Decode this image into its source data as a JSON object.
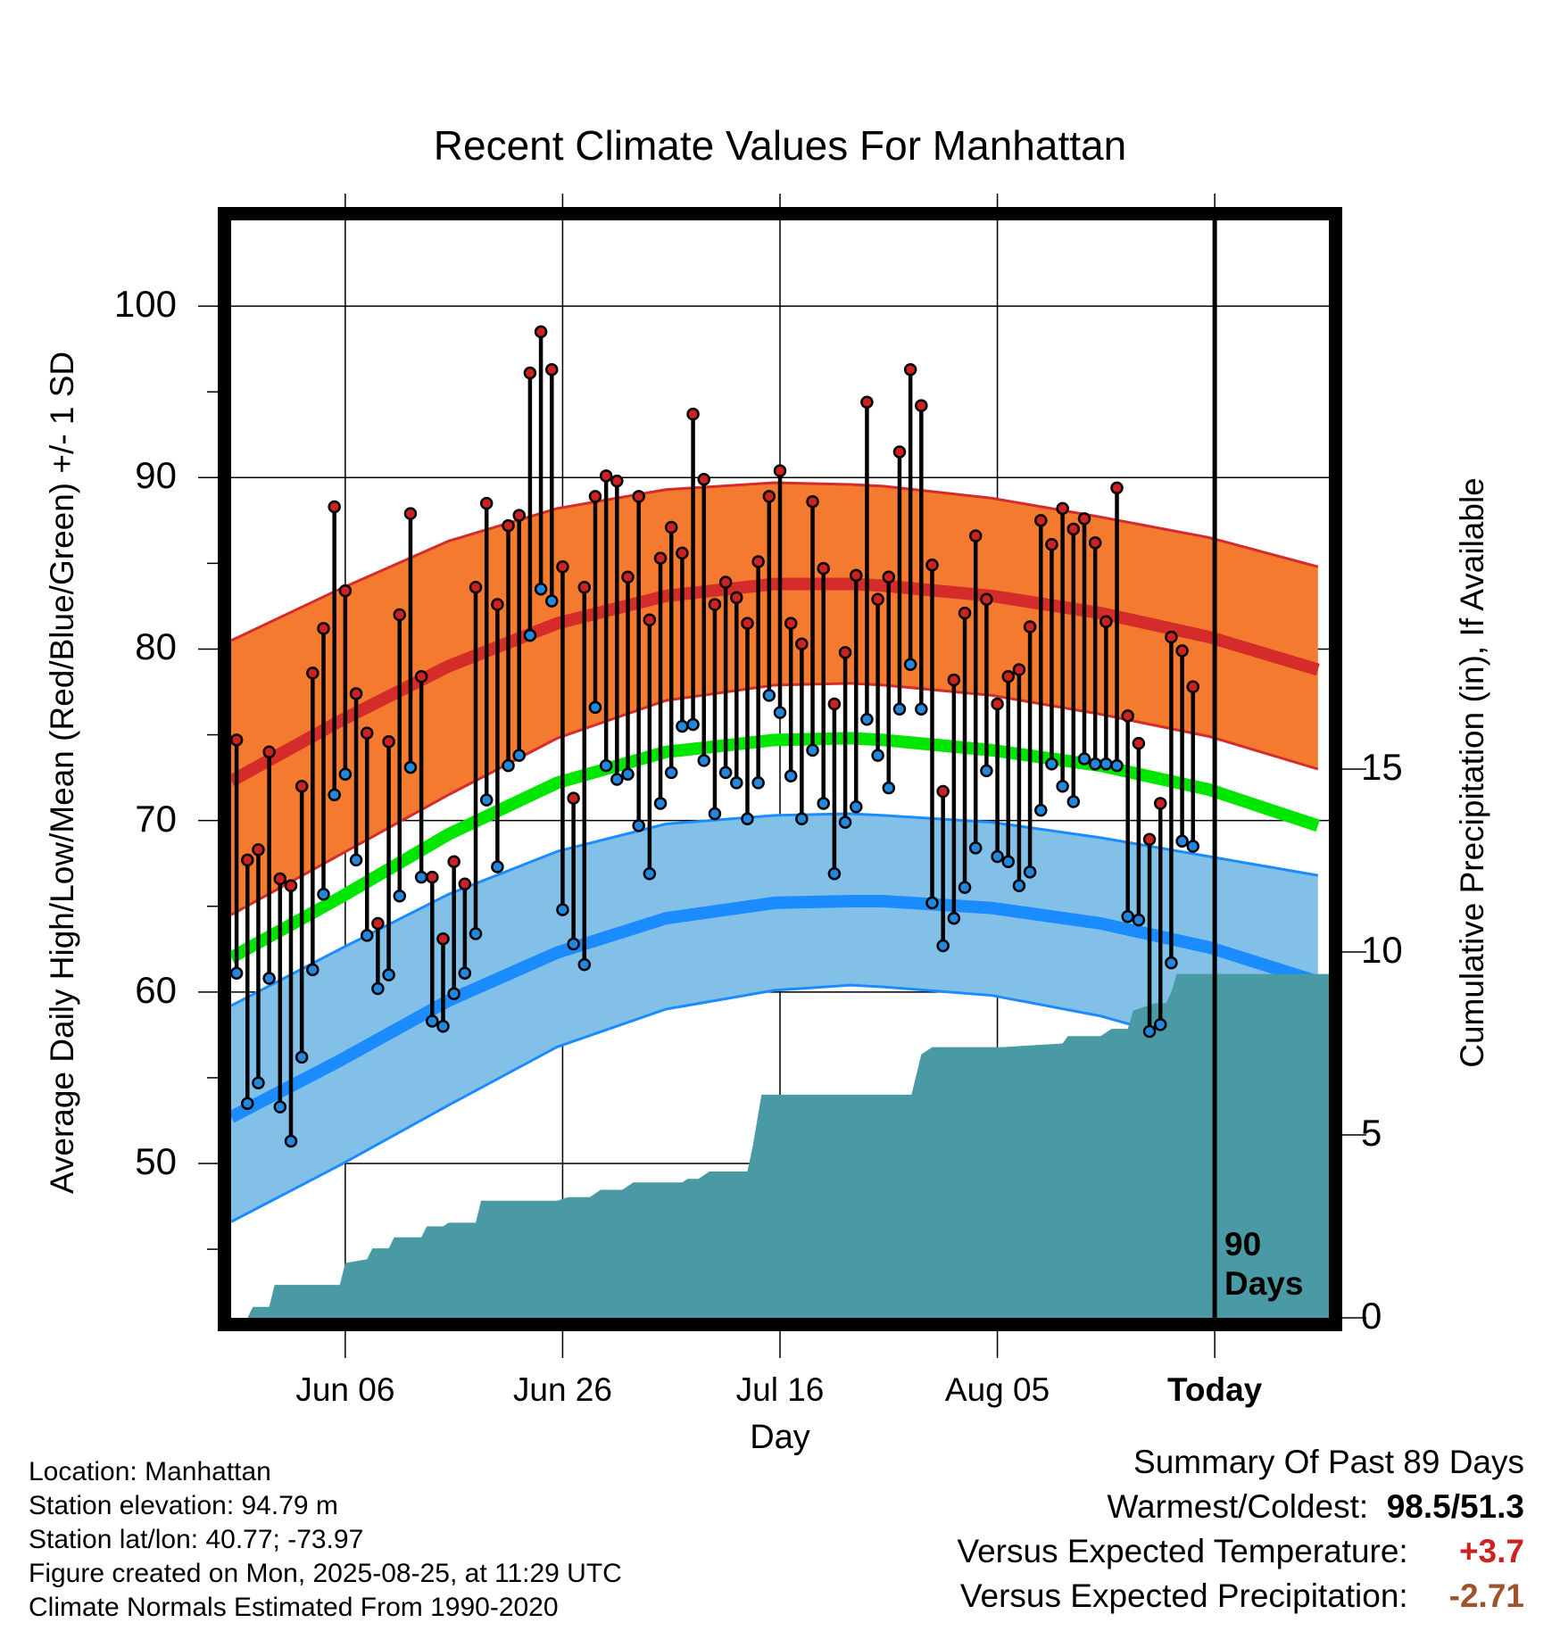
{
  "title": "Recent Climate Values For Manhattan",
  "xlabel": "Day",
  "ylabel_left": "Average Daily High/Low/Mean (Red/Blue/Green) +/- 1 SD",
  "ylabel_right": "Cumulative Precipitation (in), If Available",
  "today_label_line1": "90",
  "today_label_line2": "Days",
  "info": {
    "location": "Location: Manhattan",
    "elevation": "Station elevation: 94.79 m",
    "latlon": "Station lat/lon: 40.77; -73.97",
    "created": "Figure created on Mon, 2025-08-25, at 11:29 UTC",
    "normals": "Climate Normals Estimated From 1990-2020"
  },
  "summary": {
    "heading": "Summary Of Past 89 Days",
    "warm_cold_label": "Warmest/Coldest:",
    "warm_cold_value": "98.5/51.3",
    "temp_label": "Versus Expected Temperature:",
    "temp_value": "+3.7",
    "precip_label": "Versus Expected Precipitation:",
    "precip_value": "-2.71"
  },
  "colors": {
    "high_band": "#f47a30",
    "high_line": "#d42b2b",
    "mean_line": "#00e600",
    "low_band": "#82c0e8",
    "low_line": "#1a8cff",
    "precip_fill": "#4a9aa5",
    "high_dot": "#cc2222",
    "low_dot": "#2288dd",
    "warm_value": "#cc2222",
    "precip_value": "#a0522d"
  },
  "chart_data": {
    "type": "line",
    "title": "Recent Climate Values For Manhattan",
    "xlabel": "Day",
    "ylabel": "Average Daily High/Low/Mean (Red/Blue/Green) +/- 1 SD",
    "y2label": "Cumulative Precipitation (in), If Available",
    "x_range_days": [
      0,
      101
    ],
    "x_ticks": [
      {
        "label": "Jun 06",
        "day": 10.5
      },
      {
        "label": "Jun 26",
        "day": 30.5
      },
      {
        "label": "Jul 16",
        "day": 50.5
      },
      {
        "label": "Aug 05",
        "day": 70.5
      },
      {
        "label": "Today",
        "day": 90.5
      }
    ],
    "ylim": [
      41,
      105
    ],
    "y_ticks": [
      50,
      60,
      70,
      80,
      90,
      100
    ],
    "y2lim": [
      0,
      30
    ],
    "y2_ticks": [
      0,
      5,
      10,
      15
    ],
    "today_day": 90.5,
    "normals": {
      "day": [
        0,
        10,
        20,
        30,
        40,
        50,
        57,
        60,
        70,
        80,
        90,
        100
      ],
      "high_mean": [
        72.3,
        75.8,
        79.0,
        81.5,
        83.1,
        83.8,
        83.8,
        83.7,
        83.1,
        82.1,
        80.7,
        78.8
      ],
      "high_upper": [
        80.5,
        83.5,
        86.3,
        88.2,
        89.3,
        89.7,
        89.6,
        89.5,
        88.8,
        87.7,
        86.5,
        84.8
      ],
      "high_lower": [
        64.5,
        68.0,
        71.5,
        74.8,
        77.0,
        77.9,
        78.0,
        77.9,
        77.3,
        76.2,
        74.9,
        73.0
      ],
      "mean": [
        62.0,
        65.5,
        69.2,
        72.2,
        74.0,
        74.7,
        74.8,
        74.7,
        74.1,
        73.2,
        71.8,
        69.7
      ],
      "low_mean": [
        52.7,
        56.0,
        59.5,
        62.3,
        64.3,
        65.2,
        65.3,
        65.3,
        64.9,
        64.0,
        62.6,
        60.6
      ],
      "low_upper": [
        59.2,
        62.5,
        65.7,
        68.2,
        69.8,
        70.3,
        70.4,
        70.3,
        69.9,
        69.0,
        67.9,
        66.8
      ],
      "low_lower": [
        46.6,
        49.9,
        53.4,
        56.8,
        59.0,
        60.1,
        60.4,
        60.3,
        59.8,
        58.6,
        56.8,
        55.0
      ]
    },
    "series": [
      {
        "name": "High",
        "values": [
          74.7,
          67.7,
          68.3,
          74.0,
          66.6,
          66.2,
          72.0,
          78.6,
          81.2,
          88.3,
          83.4,
          77.4,
          75.1,
          64.0,
          74.6,
          82.0,
          87.9,
          78.4,
          66.7,
          63.1,
          67.6,
          66.3,
          83.6,
          88.5,
          82.6,
          87.2,
          87.8,
          96.1,
          98.5,
          96.3,
          84.8,
          71.3,
          83.6,
          88.9,
          90.1,
          89.8,
          84.2,
          88.9,
          81.7,
          85.3,
          87.1,
          85.6,
          93.7,
          89.9,
          82.6,
          83.9,
          83.0,
          81.5,
          85.1,
          88.9,
          90.4,
          81.5,
          80.3,
          88.6,
          84.7,
          76.8,
          79.8,
          84.3,
          94.4,
          82.9,
          84.2,
          91.5,
          96.3,
          94.2,
          84.9,
          71.7,
          78.2,
          82.1,
          86.6,
          82.9,
          76.8,
          78.4,
          78.8,
          81.3,
          87.5,
          86.1,
          88.2,
          87.0,
          87.6,
          86.2,
          81.6,
          89.4,
          76.1,
          74.5,
          68.9,
          71.0,
          80.7,
          79.9,
          77.8
        ]
      },
      {
        "name": "Low",
        "values": [
          61.1,
          53.5,
          54.7,
          60.8,
          53.3,
          51.3,
          56.2,
          61.3,
          65.7,
          71.5,
          72.7,
          67.7,
          63.3,
          60.2,
          61.0,
          65.6,
          73.1,
          66.7,
          58.3,
          58.0,
          59.9,
          61.1,
          63.4,
          71.2,
          67.3,
          73.2,
          73.8,
          80.8,
          83.5,
          82.8,
          64.8,
          62.8,
          61.6,
          76.6,
          73.2,
          72.4,
          72.7,
          69.7,
          66.9,
          71.0,
          72.8,
          75.5,
          75.6,
          73.5,
          70.4,
          72.8,
          72.2,
          70.1,
          72.2,
          77.3,
          76.3,
          72.6,
          70.1,
          74.1,
          71.0,
          66.9,
          69.9,
          70.8,
          75.9,
          73.8,
          71.9,
          76.5,
          79.1,
          76.5,
          65.2,
          62.7,
          64.3,
          66.1,
          68.4,
          72.9,
          67.9,
          67.6,
          66.2,
          67.0,
          70.6,
          73.3,
          72.0,
          71.1,
          73.6,
          73.3,
          73.3,
          73.2,
          64.4,
          64.2,
          57.7,
          58.1,
          61.7,
          68.8,
          68.5
        ]
      },
      {
        "name": "Cumulative Precipitation",
        "x": [
          0,
          1.5,
          2,
          3.5,
          4,
          10,
          10.5,
          12.5,
          13,
          14.5,
          15,
          17.5,
          18,
          19.5,
          20,
          22.5,
          23,
          30,
          31,
          33,
          34,
          36,
          37,
          41.5,
          42,
          43,
          44,
          47.5,
          48,
          48.8,
          57,
          59.5,
          62,
          62.6,
          63.5,
          64.5,
          69,
          70,
          71,
          76.5,
          77,
          80,
          81,
          82.5,
          83,
          85,
          86,
          86.5,
          87,
          89.5,
          100
        ],
        "values": [
          0,
          0,
          0.3,
          0.3,
          0.9,
          0.9,
          1.5,
          1.6,
          1.9,
          1.9,
          2.2,
          2.2,
          2.5,
          2.5,
          2.6,
          2.6,
          3.2,
          3.2,
          3.3,
          3.3,
          3.5,
          3.5,
          3.7,
          3.7,
          3.8,
          3.8,
          4.0,
          4.0,
          4.7,
          6.1,
          6.1,
          6.1,
          6.1,
          6.1,
          7.2,
          7.4,
          7.4,
          7.4,
          7.4,
          7.5,
          7.7,
          7.7,
          7.9,
          7.9,
          8.4,
          8.6,
          8.6,
          8.9,
          9.4,
          9.4,
          9.4
        ]
      }
    ]
  }
}
